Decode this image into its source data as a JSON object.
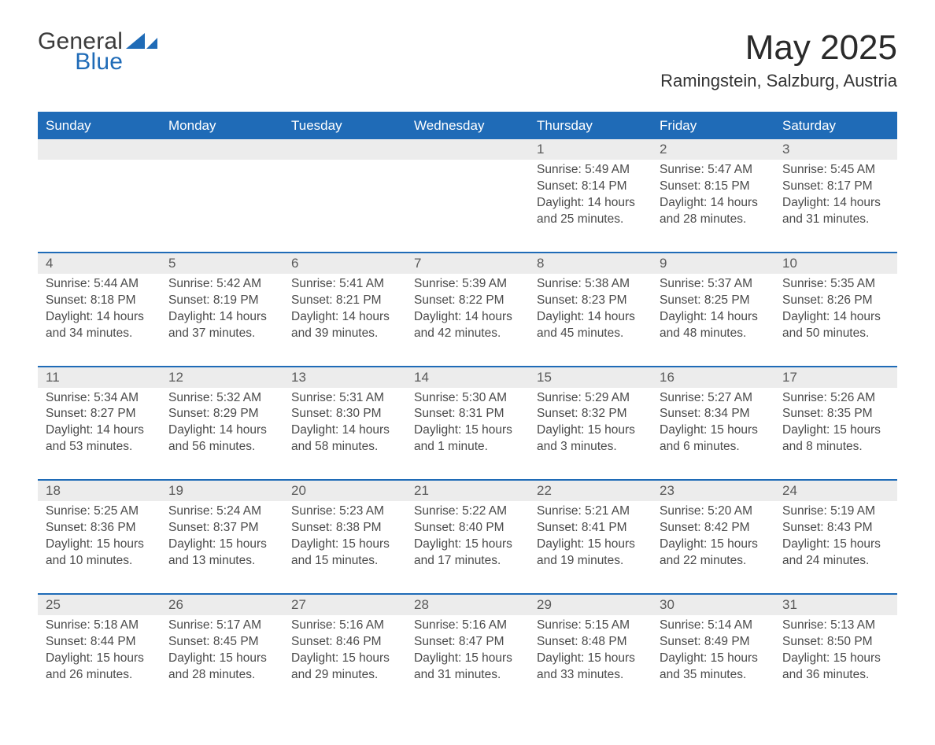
{
  "logo": {
    "word1": "General",
    "word2": "Blue",
    "mark_color": "#1f6bb7"
  },
  "title": "May 2025",
  "subtitle": "Ramingstein, Salzburg, Austria",
  "colors": {
    "brand_blue": "#1f6bb7",
    "row_grey": "#ececec",
    "text_dark": "#3a3a3a",
    "page_bg": "#ffffff"
  },
  "weekdays": [
    "Sunday",
    "Monday",
    "Tuesday",
    "Wednesday",
    "Thursday",
    "Friday",
    "Saturday"
  ],
  "weeks": [
    [
      null,
      null,
      null,
      null,
      {
        "n": "1",
        "sunrise": "Sunrise: 5:49 AM",
        "sunset": "Sunset: 8:14 PM",
        "daylight1": "Daylight: 14 hours",
        "daylight2": "and 25 minutes."
      },
      {
        "n": "2",
        "sunrise": "Sunrise: 5:47 AM",
        "sunset": "Sunset: 8:15 PM",
        "daylight1": "Daylight: 14 hours",
        "daylight2": "and 28 minutes."
      },
      {
        "n": "3",
        "sunrise": "Sunrise: 5:45 AM",
        "sunset": "Sunset: 8:17 PM",
        "daylight1": "Daylight: 14 hours",
        "daylight2": "and 31 minutes."
      }
    ],
    [
      {
        "n": "4",
        "sunrise": "Sunrise: 5:44 AM",
        "sunset": "Sunset: 8:18 PM",
        "daylight1": "Daylight: 14 hours",
        "daylight2": "and 34 minutes."
      },
      {
        "n": "5",
        "sunrise": "Sunrise: 5:42 AM",
        "sunset": "Sunset: 8:19 PM",
        "daylight1": "Daylight: 14 hours",
        "daylight2": "and 37 minutes."
      },
      {
        "n": "6",
        "sunrise": "Sunrise: 5:41 AM",
        "sunset": "Sunset: 8:21 PM",
        "daylight1": "Daylight: 14 hours",
        "daylight2": "and 39 minutes."
      },
      {
        "n": "7",
        "sunrise": "Sunrise: 5:39 AM",
        "sunset": "Sunset: 8:22 PM",
        "daylight1": "Daylight: 14 hours",
        "daylight2": "and 42 minutes."
      },
      {
        "n": "8",
        "sunrise": "Sunrise: 5:38 AM",
        "sunset": "Sunset: 8:23 PM",
        "daylight1": "Daylight: 14 hours",
        "daylight2": "and 45 minutes."
      },
      {
        "n": "9",
        "sunrise": "Sunrise: 5:37 AM",
        "sunset": "Sunset: 8:25 PM",
        "daylight1": "Daylight: 14 hours",
        "daylight2": "and 48 minutes."
      },
      {
        "n": "10",
        "sunrise": "Sunrise: 5:35 AM",
        "sunset": "Sunset: 8:26 PM",
        "daylight1": "Daylight: 14 hours",
        "daylight2": "and 50 minutes."
      }
    ],
    [
      {
        "n": "11",
        "sunrise": "Sunrise: 5:34 AM",
        "sunset": "Sunset: 8:27 PM",
        "daylight1": "Daylight: 14 hours",
        "daylight2": "and 53 minutes."
      },
      {
        "n": "12",
        "sunrise": "Sunrise: 5:32 AM",
        "sunset": "Sunset: 8:29 PM",
        "daylight1": "Daylight: 14 hours",
        "daylight2": "and 56 minutes."
      },
      {
        "n": "13",
        "sunrise": "Sunrise: 5:31 AM",
        "sunset": "Sunset: 8:30 PM",
        "daylight1": "Daylight: 14 hours",
        "daylight2": "and 58 minutes."
      },
      {
        "n": "14",
        "sunrise": "Sunrise: 5:30 AM",
        "sunset": "Sunset: 8:31 PM",
        "daylight1": "Daylight: 15 hours",
        "daylight2": "and 1 minute."
      },
      {
        "n": "15",
        "sunrise": "Sunrise: 5:29 AM",
        "sunset": "Sunset: 8:32 PM",
        "daylight1": "Daylight: 15 hours",
        "daylight2": "and 3 minutes."
      },
      {
        "n": "16",
        "sunrise": "Sunrise: 5:27 AM",
        "sunset": "Sunset: 8:34 PM",
        "daylight1": "Daylight: 15 hours",
        "daylight2": "and 6 minutes."
      },
      {
        "n": "17",
        "sunrise": "Sunrise: 5:26 AM",
        "sunset": "Sunset: 8:35 PM",
        "daylight1": "Daylight: 15 hours",
        "daylight2": "and 8 minutes."
      }
    ],
    [
      {
        "n": "18",
        "sunrise": "Sunrise: 5:25 AM",
        "sunset": "Sunset: 8:36 PM",
        "daylight1": "Daylight: 15 hours",
        "daylight2": "and 10 minutes."
      },
      {
        "n": "19",
        "sunrise": "Sunrise: 5:24 AM",
        "sunset": "Sunset: 8:37 PM",
        "daylight1": "Daylight: 15 hours",
        "daylight2": "and 13 minutes."
      },
      {
        "n": "20",
        "sunrise": "Sunrise: 5:23 AM",
        "sunset": "Sunset: 8:38 PM",
        "daylight1": "Daylight: 15 hours",
        "daylight2": "and 15 minutes."
      },
      {
        "n": "21",
        "sunrise": "Sunrise: 5:22 AM",
        "sunset": "Sunset: 8:40 PM",
        "daylight1": "Daylight: 15 hours",
        "daylight2": "and 17 minutes."
      },
      {
        "n": "22",
        "sunrise": "Sunrise: 5:21 AM",
        "sunset": "Sunset: 8:41 PM",
        "daylight1": "Daylight: 15 hours",
        "daylight2": "and 19 minutes."
      },
      {
        "n": "23",
        "sunrise": "Sunrise: 5:20 AM",
        "sunset": "Sunset: 8:42 PM",
        "daylight1": "Daylight: 15 hours",
        "daylight2": "and 22 minutes."
      },
      {
        "n": "24",
        "sunrise": "Sunrise: 5:19 AM",
        "sunset": "Sunset: 8:43 PM",
        "daylight1": "Daylight: 15 hours",
        "daylight2": "and 24 minutes."
      }
    ],
    [
      {
        "n": "25",
        "sunrise": "Sunrise: 5:18 AM",
        "sunset": "Sunset: 8:44 PM",
        "daylight1": "Daylight: 15 hours",
        "daylight2": "and 26 minutes."
      },
      {
        "n": "26",
        "sunrise": "Sunrise: 5:17 AM",
        "sunset": "Sunset: 8:45 PM",
        "daylight1": "Daylight: 15 hours",
        "daylight2": "and 28 minutes."
      },
      {
        "n": "27",
        "sunrise": "Sunrise: 5:16 AM",
        "sunset": "Sunset: 8:46 PM",
        "daylight1": "Daylight: 15 hours",
        "daylight2": "and 29 minutes."
      },
      {
        "n": "28",
        "sunrise": "Sunrise: 5:16 AM",
        "sunset": "Sunset: 8:47 PM",
        "daylight1": "Daylight: 15 hours",
        "daylight2": "and 31 minutes."
      },
      {
        "n": "29",
        "sunrise": "Sunrise: 5:15 AM",
        "sunset": "Sunset: 8:48 PM",
        "daylight1": "Daylight: 15 hours",
        "daylight2": "and 33 minutes."
      },
      {
        "n": "30",
        "sunrise": "Sunrise: 5:14 AM",
        "sunset": "Sunset: 8:49 PM",
        "daylight1": "Daylight: 15 hours",
        "daylight2": "and 35 minutes."
      },
      {
        "n": "31",
        "sunrise": "Sunrise: 5:13 AM",
        "sunset": "Sunset: 8:50 PM",
        "daylight1": "Daylight: 15 hours",
        "daylight2": "and 36 minutes."
      }
    ]
  ]
}
